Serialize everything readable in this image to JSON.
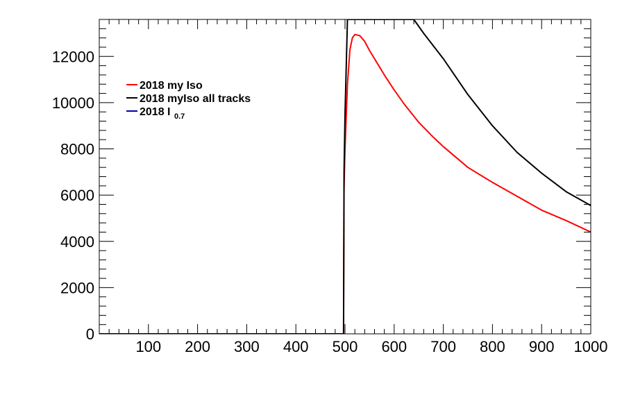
{
  "chart_data": {
    "type": "line",
    "title": "",
    "xlabel": "",
    "ylabel": "",
    "xlim": [
      0,
      1000
    ],
    "ylim": [
      0,
      13600
    ],
    "grid": false,
    "legend_position": "top-left",
    "x_ticks": [
      100,
      200,
      300,
      400,
      500,
      600,
      700,
      800,
      900,
      1000
    ],
    "x_tick_labels": [
      "100",
      "200",
      "300",
      "400",
      "500",
      "600",
      "700",
      "800",
      "900",
      "1000"
    ],
    "y_ticks": [
      0,
      2000,
      4000,
      6000,
      8000,
      10000,
      12000
    ],
    "y_tick_labels": [
      "0",
      "2000",
      "4000",
      "6000",
      "8000",
      "10000",
      "12000"
    ],
    "legend": [
      {
        "label": "2018 my Iso",
        "subscript": ""
      },
      {
        "label": "2018 myIso all tracks",
        "subscript": ""
      },
      {
        "label": "2018 I",
        "subscript": "0.7"
      }
    ],
    "series": [
      {
        "name": "2018 my Iso",
        "color": "#ff0000",
        "x": [
          0,
          497,
          498,
          500,
          505,
          510,
          515,
          520,
          530,
          540,
          550,
          560,
          570,
          580,
          600,
          620,
          650,
          680,
          700,
          750,
          800,
          850,
          900,
          950,
          1000
        ],
        "y": [
          0,
          0,
          6300,
          8000,
          10800,
          12300,
          12800,
          12950,
          12900,
          12650,
          12250,
          11900,
          11550,
          11200,
          10550,
          9950,
          9150,
          8500,
          8100,
          7200,
          6550,
          5950,
          5350,
          4900,
          4400
        ]
      },
      {
        "name": "2018 myIso all tracks",
        "color": "#000000",
        "x": [
          0,
          497,
          498,
          500,
          505,
          640,
          660,
          700,
          750,
          800,
          850,
          900,
          950,
          1000
        ],
        "y": [
          0,
          0,
          7000,
          9500,
          13600,
          13600,
          13000,
          11900,
          10350,
          9000,
          7850,
          6950,
          6150,
          5550
        ]
      },
      {
        "name": "2018 I0.7",
        "color": "#0000aa",
        "x": [],
        "y": []
      }
    ]
  }
}
